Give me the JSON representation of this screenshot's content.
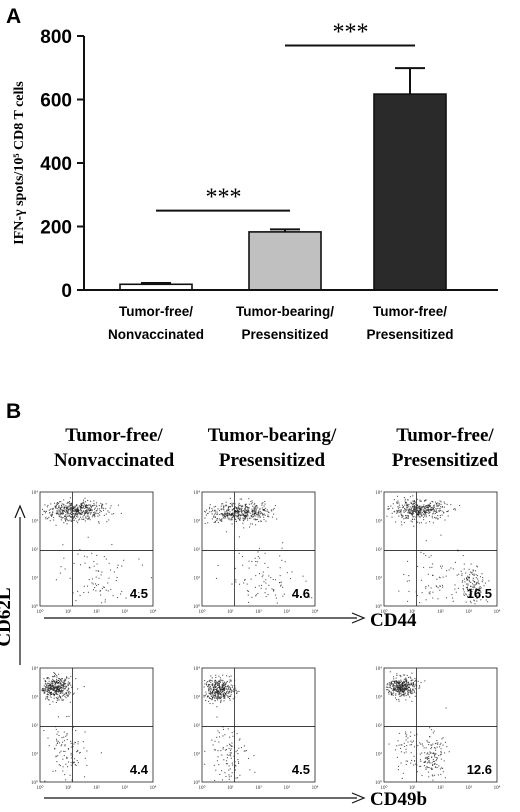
{
  "panel_a": {
    "letter": "A"
  },
  "panel_b": {
    "letter": "B"
  },
  "chart_data": [
    {
      "type": "bar",
      "ylabel": "IFN-γ spots/10⁵ CD8 T cells",
      "ylim": [
        0,
        800
      ],
      "yticks": [
        0,
        200,
        400,
        600,
        800
      ],
      "categories": [
        {
          "line1": "Tumor-free/",
          "line2": "Nonvaccinated"
        },
        {
          "line1": "Tumor-bearing/",
          "line2": "Presensitized"
        },
        {
          "line1": "Tumor-free/",
          "line2": "Presensitized"
        }
      ],
      "values": [
        18,
        183,
        617
      ],
      "errors": [
        4,
        8,
        82
      ],
      "bar_colors": [
        "#ffffff",
        "#c0c0c0",
        "#2a2a2a"
      ],
      "significance": [
        {
          "from": 0,
          "to": 1,
          "level": 250,
          "label": "***"
        },
        {
          "from": 1,
          "to": 2,
          "level": 770,
          "label": "***"
        }
      ]
    },
    {
      "type": "scatter",
      "columns": [
        {
          "line1": "Tumor-free/",
          "line2": "Nonvaccinated"
        },
        {
          "line1": "Tumor-bearing/",
          "line2": "Presensitized"
        },
        {
          "line1": "Tumor-free/",
          "line2": "Presensitized"
        }
      ],
      "y_marker": "CD62L",
      "rows": [
        {
          "x_marker": "CD44",
          "quadrant_values": [
            "4.5",
            "4.6",
            "16.5"
          ]
        },
        {
          "x_marker": "CD49b",
          "quadrant_values": [
            "4.4",
            "4.5",
            "12.6"
          ]
        }
      ],
      "axis_tick_labels": [
        "10⁰",
        "10¹",
        "10²",
        "10³",
        "10⁴"
      ],
      "populations": [
        [
          [
            {
              "x": 1.25,
              "y": 3.35,
              "sx": 0.55,
              "sy": 0.18,
              "n": 460
            },
            {
              "x": 2.1,
              "y": 1.0,
              "sx": 0.65,
              "sy": 0.55,
              "n": 90
            }
          ],
          [
            {
              "x": 1.3,
              "y": 3.3,
              "sx": 0.55,
              "sy": 0.18,
              "n": 450
            },
            {
              "x": 2.1,
              "y": 0.95,
              "sx": 0.65,
              "sy": 0.55,
              "n": 90
            }
          ],
          [
            {
              "x": 1.2,
              "y": 3.38,
              "sx": 0.5,
              "sy": 0.17,
              "n": 400
            },
            {
              "x": 3.1,
              "y": 0.8,
              "sx": 0.28,
              "sy": 0.35,
              "n": 130
            },
            {
              "x": 1.8,
              "y": 1.0,
              "sx": 0.6,
              "sy": 0.55,
              "n": 70
            }
          ]
        ],
        [
          [
            {
              "x": 0.55,
              "y": 3.3,
              "sx": 0.28,
              "sy": 0.2,
              "n": 380
            },
            {
              "x": 0.9,
              "y": 1.0,
              "sx": 0.35,
              "sy": 0.55,
              "n": 110
            }
          ],
          [
            {
              "x": 0.6,
              "y": 3.25,
              "sx": 0.28,
              "sy": 0.2,
              "n": 360
            },
            {
              "x": 0.9,
              "y": 1.0,
              "sx": 0.35,
              "sy": 0.55,
              "n": 110
            }
          ],
          [
            {
              "x": 0.6,
              "y": 3.35,
              "sx": 0.25,
              "sy": 0.18,
              "n": 360
            },
            {
              "x": 1.7,
              "y": 0.9,
              "sx": 0.25,
              "sy": 0.4,
              "n": 130
            },
            {
              "x": 0.8,
              "y": 1.1,
              "sx": 0.35,
              "sy": 0.5,
              "n": 60
            }
          ]
        ]
      ]
    }
  ]
}
